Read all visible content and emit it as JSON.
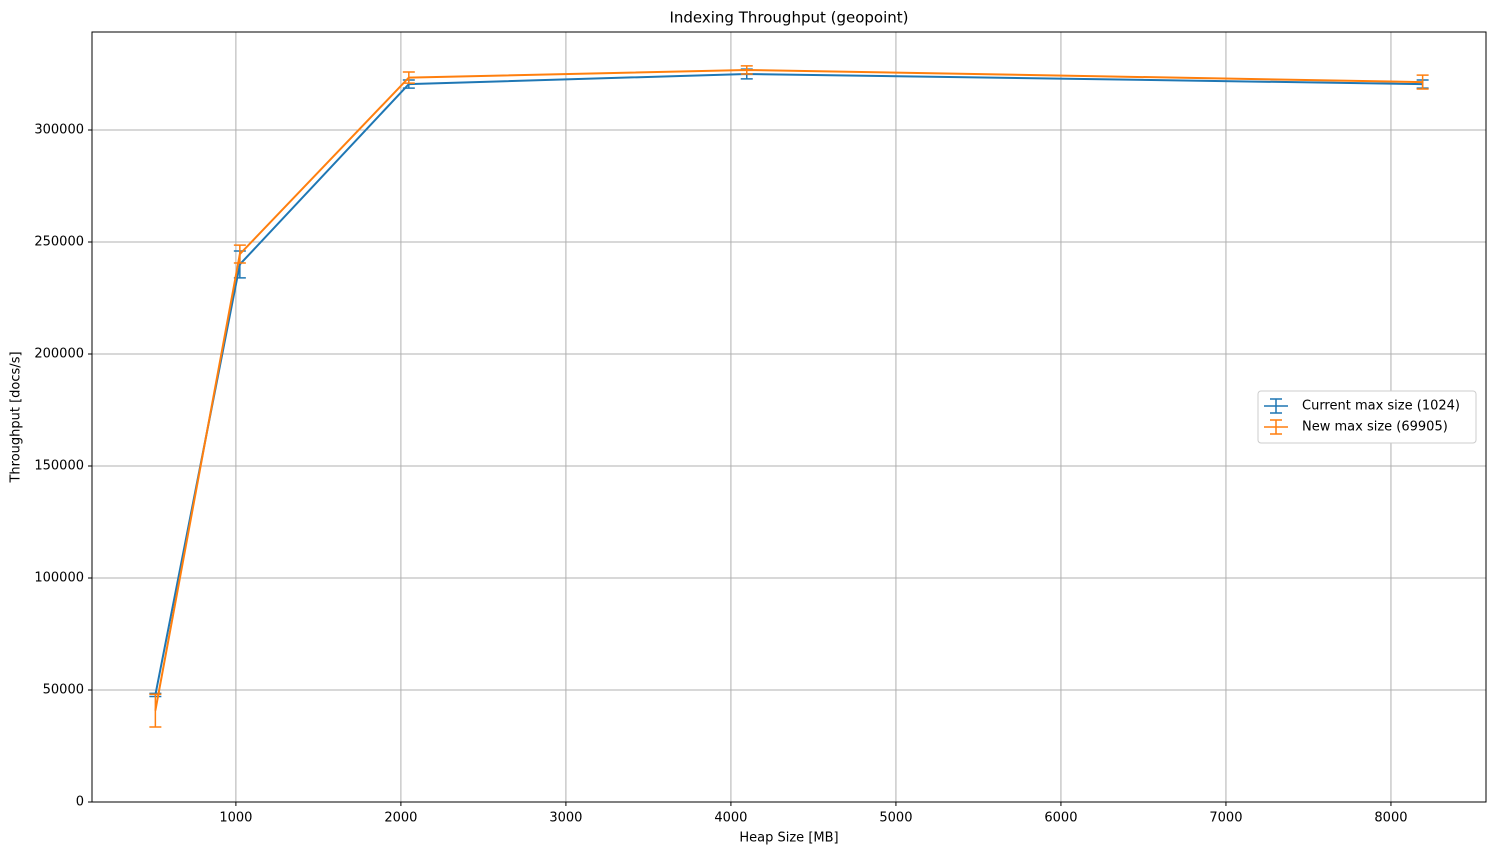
{
  "chart_data": {
    "type": "errorbar",
    "title": "Indexing Throughput (geopoint)",
    "x_label": "Heap Size [MB]",
    "y_label": "Throughput [docs/s]",
    "x": [
      512,
      1024,
      2048,
      4096,
      8192
    ],
    "series": [
      {
        "name": "Current max size (1024)",
        "color": "#1f77b4",
        "values": [
          47800,
          240000,
          320500,
          325000,
          320500
        ],
        "errors": [
          700,
          6000,
          1800,
          2200,
          1800
        ]
      },
      {
        "name": "New max size (69905)",
        "color": "#ff7f0e",
        "values": [
          40800,
          244600,
          323400,
          326800,
          321400
        ],
        "errors": [
          7300,
          4000,
          2500,
          1800,
          3100
        ]
      }
    ],
    "xlim": [
      128,
      8576
    ],
    "ylim": [
      0,
      343750
    ],
    "xticks": [
      1000,
      2000,
      3000,
      4000,
      5000,
      6000,
      7000,
      8000
    ],
    "yticks": [
      0,
      50000,
      100000,
      150000,
      200000,
      250000,
      300000
    ],
    "grid": true,
    "legend": "center right"
  }
}
